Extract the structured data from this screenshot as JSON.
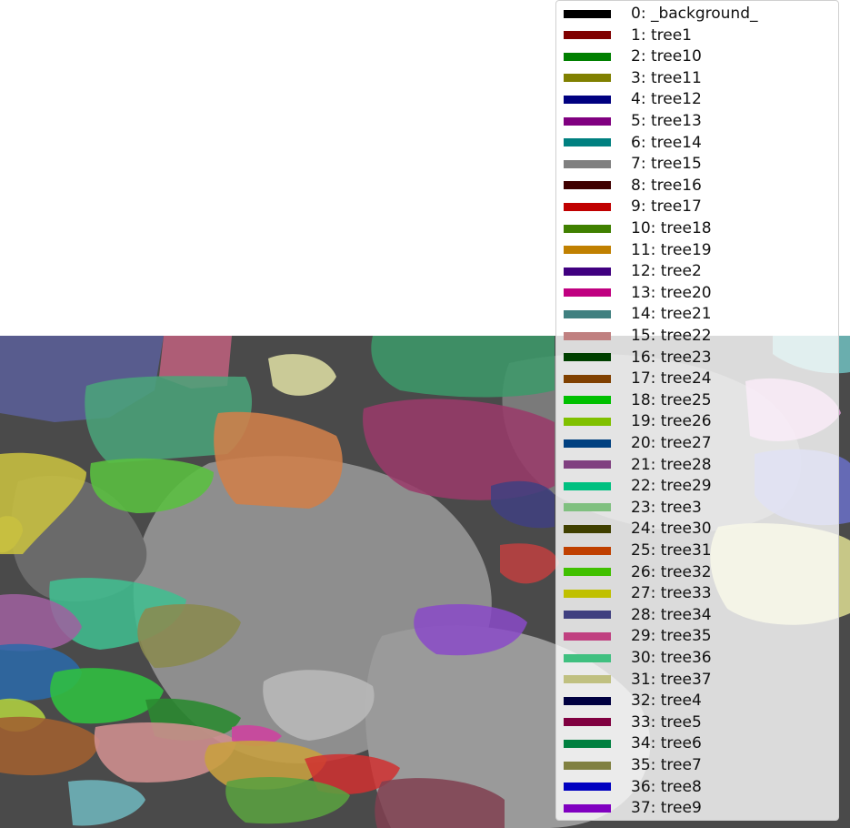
{
  "legend": {
    "items": [
      {
        "label": "0: _background_",
        "color": "#000000"
      },
      {
        "label": "1: tree1",
        "color": "#800000"
      },
      {
        "label": "2: tree10",
        "color": "#008000"
      },
      {
        "label": "3: tree11",
        "color": "#808000"
      },
      {
        "label": "4: tree12",
        "color": "#000080"
      },
      {
        "label": "5: tree13",
        "color": "#800080"
      },
      {
        "label": "6: tree14",
        "color": "#008080"
      },
      {
        "label": "7: tree15",
        "color": "#808080"
      },
      {
        "label": "8: tree16",
        "color": "#400000"
      },
      {
        "label": "9: tree17",
        "color": "#c00000"
      },
      {
        "label": "10: tree18",
        "color": "#408000"
      },
      {
        "label": "11: tree19",
        "color": "#c08000"
      },
      {
        "label": "12: tree2",
        "color": "#400080"
      },
      {
        "label": "13: tree20",
        "color": "#c00080"
      },
      {
        "label": "14: tree21",
        "color": "#408080"
      },
      {
        "label": "15: tree22",
        "color": "#c08080"
      },
      {
        "label": "16: tree23",
        "color": "#004000"
      },
      {
        "label": "17: tree24",
        "color": "#804000"
      },
      {
        "label": "18: tree25",
        "color": "#00c000"
      },
      {
        "label": "19: tree26",
        "color": "#80c000"
      },
      {
        "label": "20: tree27",
        "color": "#004080"
      },
      {
        "label": "21: tree28",
        "color": "#804080"
      },
      {
        "label": "22: tree29",
        "color": "#00c080"
      },
      {
        "label": "23: tree3",
        "color": "#80c080"
      },
      {
        "label": "24: tree30",
        "color": "#404000"
      },
      {
        "label": "25: tree31",
        "color": "#c04000"
      },
      {
        "label": "26: tree32",
        "color": "#40c000"
      },
      {
        "label": "27: tree33",
        "color": "#c0c000"
      },
      {
        "label": "28: tree34",
        "color": "#404080"
      },
      {
        "label": "29: tree35",
        "color": "#c04080"
      },
      {
        "label": "30: tree36",
        "color": "#40c080"
      },
      {
        "label": "31: tree37",
        "color": "#c0c080"
      },
      {
        "label": "32: tree4",
        "color": "#000040"
      },
      {
        "label": "33: tree5",
        "color": "#800040"
      },
      {
        "label": "34: tree6",
        "color": "#008040"
      },
      {
        "label": "35: tree7",
        "color": "#808040"
      },
      {
        "label": "36: tree8",
        "color": "#0000c0"
      },
      {
        "label": "37: tree9",
        "color": "#8000c0"
      }
    ]
  }
}
